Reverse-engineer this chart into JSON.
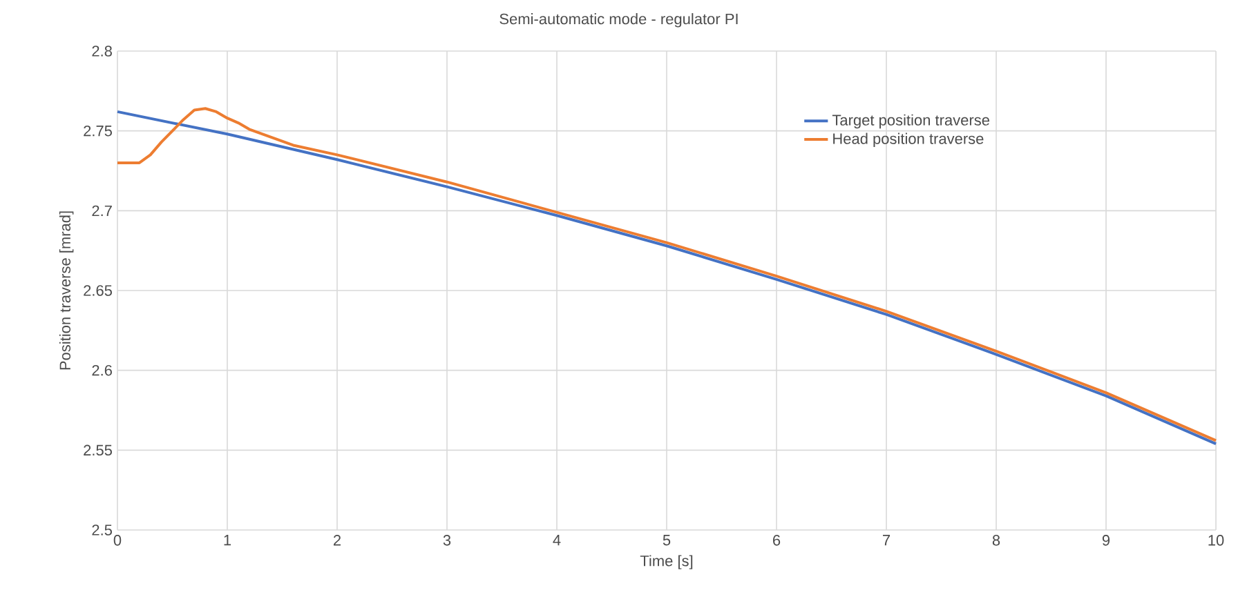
{
  "chart_data": {
    "type": "line",
    "title": "Semi-automatic mode - regulator PI",
    "xlabel": "Time [s]",
    "ylabel": "Position traverse [mrad]",
    "xlim": [
      0,
      10
    ],
    "ylim": [
      2.5,
      2.8
    ],
    "xticks": [
      0,
      1,
      2,
      3,
      4,
      5,
      6,
      7,
      8,
      9,
      10
    ],
    "yticks": [
      2.5,
      2.55,
      2.6,
      2.65,
      2.7,
      2.75,
      2.8
    ],
    "grid": true,
    "legend": "top right",
    "line_style": "solid",
    "series": [
      {
        "name": "Target position traverse",
        "color": "#4472c4",
        "x": [
          0,
          1,
          2,
          3,
          4,
          5,
          6,
          7,
          8,
          9,
          10
        ],
        "values": [
          2.762,
          2.748,
          2.732,
          2.715,
          2.697,
          2.678,
          2.657,
          2.635,
          2.61,
          2.584,
          2.554
        ]
      },
      {
        "name": "Head position traverse",
        "color": "#ed7d31",
        "x": [
          0,
          0.2,
          0.3,
          0.4,
          0.5,
          0.6,
          0.7,
          0.8,
          0.9,
          1,
          1.1,
          1.2,
          1.4,
          1.6,
          2,
          3,
          4,
          5,
          6,
          7,
          8,
          9,
          10
        ],
        "values": [
          2.73,
          2.73,
          2.735,
          2.743,
          2.75,
          2.757,
          2.763,
          2.764,
          2.762,
          2.758,
          2.755,
          2.751,
          2.746,
          2.741,
          2.735,
          2.718,
          2.699,
          2.68,
          2.659,
          2.637,
          2.612,
          2.586,
          2.556
        ]
      }
    ]
  }
}
